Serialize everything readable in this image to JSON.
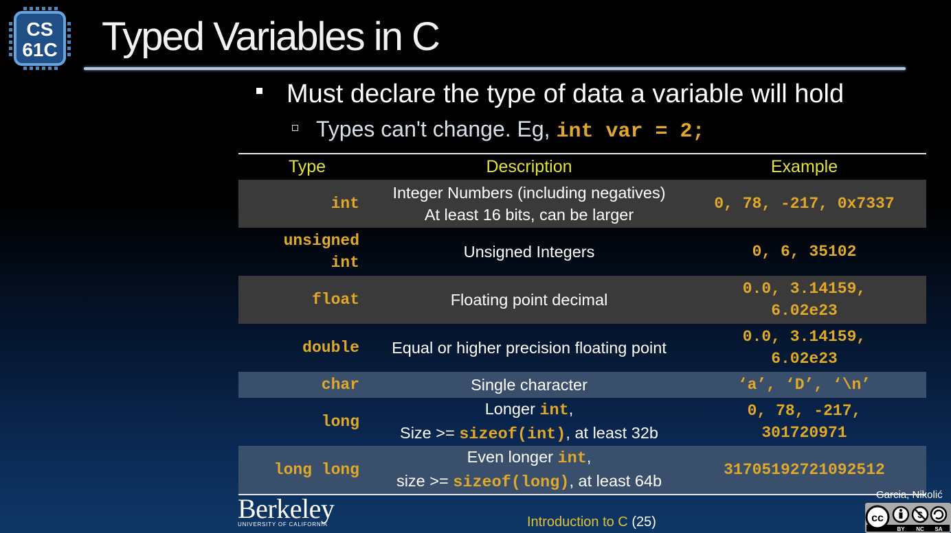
{
  "logo": {
    "line1": "CS",
    "line2": "61C"
  },
  "title": "Typed Variables in C",
  "bullet1": "Must declare the type of data a variable will hold",
  "bullet2": {
    "text": "Types can't change. Eg, ",
    "code": "int var = 2;"
  },
  "table": {
    "headers": [
      "Type",
      "Description",
      "Example"
    ],
    "rows": [
      {
        "type": [
          "int"
        ],
        "desc": [
          "Integer Numbers (including negatives)",
          "At least 16 bits, can be larger"
        ],
        "example": [
          "0, 78, -217, 0x7337"
        ]
      },
      {
        "type": [
          "unsigned",
          "int"
        ],
        "desc": [
          "Unsigned Integers"
        ],
        "example": [
          "0, 6, 35102"
        ]
      },
      {
        "type": [
          "float"
        ],
        "desc": [
          "Floating point decimal"
        ],
        "example": [
          "0.0, 3.14159,",
          "6.02e23"
        ]
      },
      {
        "type": [
          "double"
        ],
        "desc": [
          "Equal or higher precision floating point"
        ],
        "example": [
          "0.0, 3.14159,",
          "6.02e23"
        ]
      },
      {
        "type": [
          "char"
        ],
        "desc": [
          "Single character"
        ],
        "example": [
          "‘a’, ‘D’, ‘\\n’"
        ]
      },
      {
        "type": [
          "long"
        ],
        "desc_long": {
          "l1a": "Longer ",
          "l1code": "int",
          "l1b": ",",
          "l2a": "Size >= ",
          "l2code": "sizeof(int)",
          "l2b": ", at least 32b"
        },
        "example": [
          "0, 78, -217,",
          "301720971"
        ]
      },
      {
        "type": [
          "long long"
        ],
        "desc_longlong": {
          "l1a": "Even longer ",
          "l1code": "int",
          "l1b": ",",
          "l2a": "size >= ",
          "l2code": "sizeof(long)",
          "l2b": ", at least 64b"
        },
        "example": [
          "31705192721092512"
        ]
      }
    ]
  },
  "footer": {
    "brand": "Berkeley",
    "brand_sub": "UNIVERSITY OF CALIFORNIA",
    "course_text": "Introduction to C",
    "page": "(25)",
    "authors": "Garcia, Nikolić",
    "license": [
      "BY",
      "NC",
      "SA"
    ]
  },
  "colors": {
    "code": "#e0a92a",
    "header": "#e1e23c",
    "row_dark": "#3a3a3a",
    "row_blue": "#3a4f6c"
  }
}
